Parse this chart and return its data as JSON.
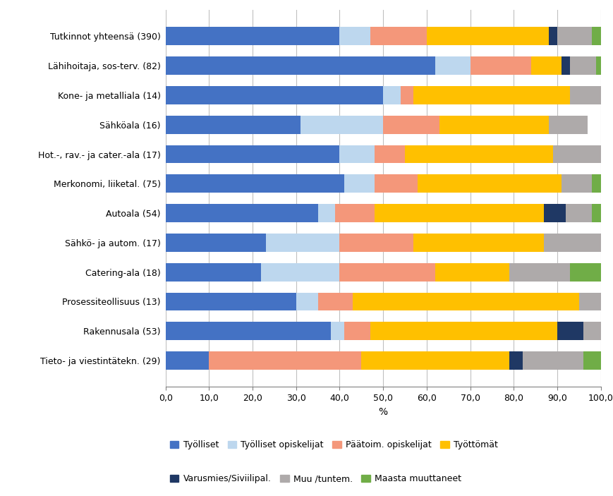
{
  "categories": [
    "Tutkinnot yhteensä (390)",
    "Lähihoitaja, sos-terv. (82)",
    "Kone- ja metalliala (14)",
    "Sähköala (16)",
    "Hot.-, rav.- ja cater.-ala (17)",
    "Merkonomi, liiketal. (75)",
    "Autoala (54)",
    "Sähkö- ja autom. (17)",
    "Catering-ala (18)",
    "Prosessiteollisuus (13)",
    "Rakennusala (53)",
    "Tieto- ja viestintätekn. (29)"
  ],
  "series": {
    "Työlliset": [
      40,
      62,
      50,
      31,
      40,
      41,
      35,
      23,
      22,
      30,
      38,
      10
    ],
    "Työlliset opiskelijat": [
      7,
      8,
      4,
      19,
      8,
      7,
      4,
      17,
      18,
      5,
      3,
      0
    ],
    "Päätoim. opiskelijat": [
      13,
      14,
      3,
      13,
      7,
      10,
      9,
      17,
      22,
      8,
      6,
      35
    ],
    "Työttömät": [
      28,
      7,
      36,
      25,
      34,
      33,
      39,
      30,
      17,
      52,
      43,
      34
    ],
    "Varusmies/Siviilipal.": [
      2,
      2,
      0,
      0,
      0,
      0,
      5,
      0,
      0,
      0,
      6,
      3
    ],
    "Muu /tuntem.": [
      8,
      6,
      7,
      9,
      11,
      7,
      6,
      13,
      14,
      5,
      4,
      14
    ],
    "Maasta muuttaneet": [
      2,
      1,
      0,
      0,
      0,
      2,
      2,
      0,
      7,
      0,
      0,
      4
    ]
  },
  "colors": {
    "Työlliset": "#4472C4",
    "Työlliset opiskelijat": "#BDD7EE",
    "Päätoim. opiskelijat": "#F4977A",
    "Työttömät": "#FFC000",
    "Varusmies/Siviilipal.": "#1F3864",
    "Muu /tuntem.": "#AEAAAA",
    "Maasta muuttaneet": "#70AD47"
  },
  "xlabel": "%",
  "xlim": [
    0,
    100
  ],
  "xticks": [
    0,
    10,
    20,
    30,
    40,
    50,
    60,
    70,
    80,
    90,
    100
  ],
  "xticklabels": [
    "0,0",
    "10,0",
    "20,0",
    "30,0",
    "40,0",
    "50,0",
    "60,0",
    "70,0",
    "80,0",
    "90,0",
    "100,0"
  ],
  "background_color": "#FFFFFF",
  "grid_color": "#C0C0C0",
  "label_fontsize": 10,
  "tick_fontsize": 9,
  "bar_height": 0.62
}
